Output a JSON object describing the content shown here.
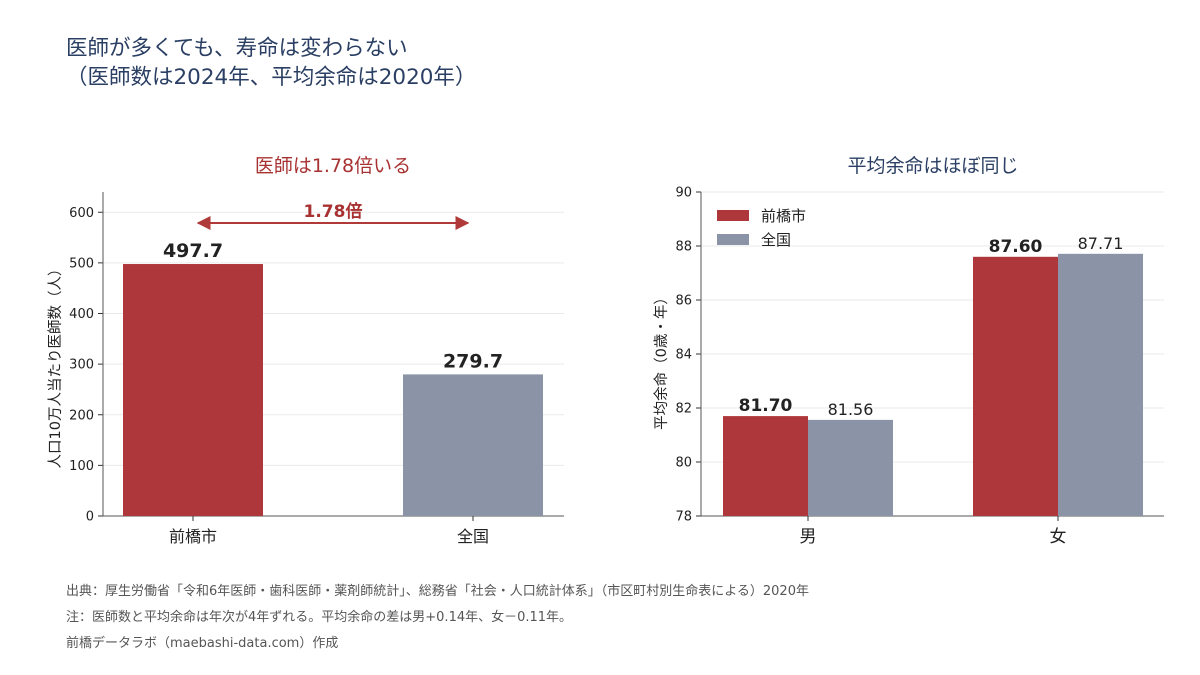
{
  "title": "医師が多くても、寿命は変わらない\n（医師数は2024年、平均余命は2020年）",
  "chart_data": [
    {
      "type": "bar",
      "title": "医師は1.78倍いる",
      "title_color": "#a83232",
      "categories": [
        "前橋市",
        "全国"
      ],
      "values": [
        497.7,
        279.7
      ],
      "value_labels": [
        "497.7",
        "279.7"
      ],
      "colors": [
        "#ad373a",
        "#8a94a6"
      ],
      "ylabel": "人口10万人当たり医師数（人）",
      "ylim": [
        0,
        640
      ],
      "yticks": [
        "0",
        "100",
        "200",
        "300",
        "400",
        "500",
        "600"
      ],
      "grid": true,
      "annotation": {
        "text": "1.78倍",
        "color": "#a83232",
        "arrow": "double-headed, 前橋市 to 全国"
      }
    },
    {
      "type": "bar",
      "title": "平均余命はほぼ同じ",
      "title_color": "#2a3f63",
      "categories": [
        "男",
        "女"
      ],
      "series": [
        {
          "name": "前橋市",
          "values": [
            81.7,
            87.6
          ],
          "labels": [
            "81.70",
            "87.60"
          ],
          "color": "#ad373a"
        },
        {
          "name": "全国",
          "values": [
            81.56,
            87.71
          ],
          "labels": [
            "81.56",
            "87.71"
          ],
          "color": "#8a94a6"
        }
      ],
      "ylabel": "平均余命（0歳・年）",
      "ylim": [
        78,
        90
      ],
      "yticks": [
        "78",
        "80",
        "82",
        "84",
        "86",
        "88",
        "90"
      ],
      "grid": true,
      "legend": "top-left"
    }
  ],
  "footer": {
    "source": "出典：厚生労働省「令和6年医師・歯科医師・薬剤師統計」、総務省「社会・人口統計体系」（市区町村別生命表による）2020年",
    "note": "注：医師数と平均余命は年次が4年ずれる。平均余命の差は男+0.14年、女－0.11年。",
    "credit": "前橋データラボ（maebashi-data.com）作成"
  }
}
